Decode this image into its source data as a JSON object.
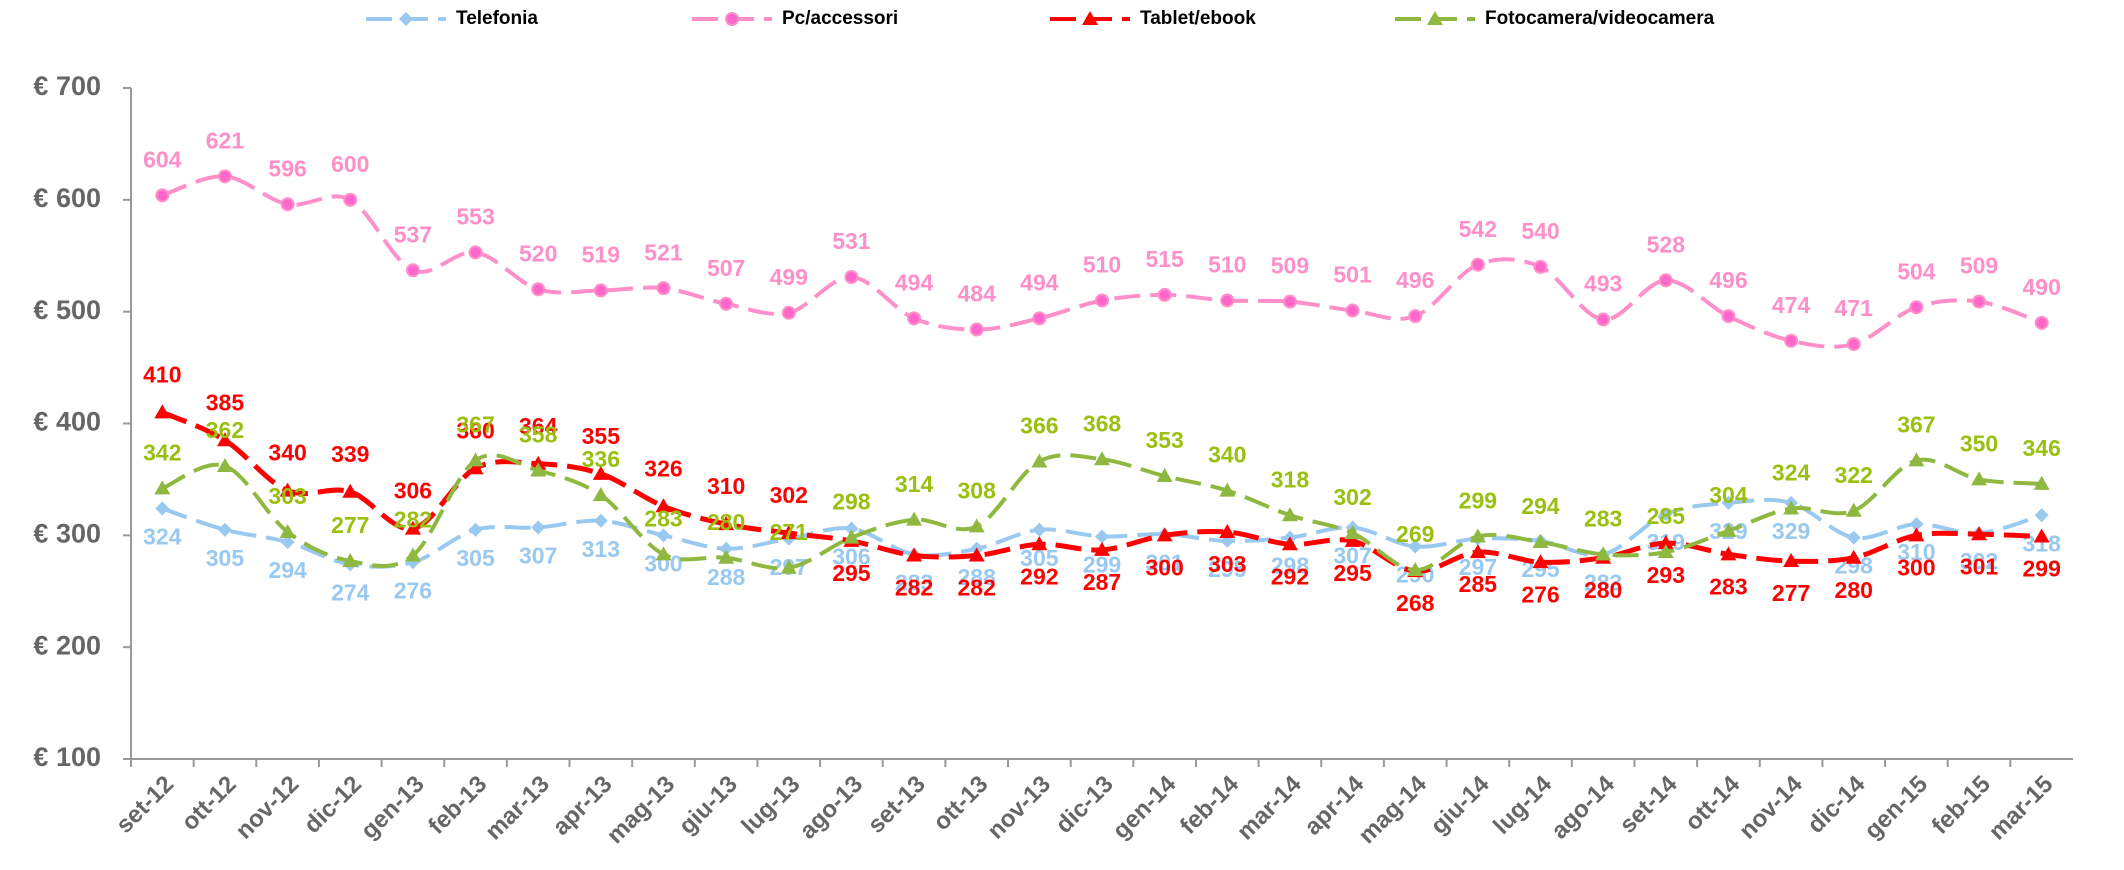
{
  "chart_data": {
    "type": "line",
    "categories": [
      "set-12",
      "ott-12",
      "nov-12",
      "dic-12",
      "gen-13",
      "feb-13",
      "mar-13",
      "apr-13",
      "mag-13",
      "giu-13",
      "lug-13",
      "ago-13",
      "set-13",
      "ott-13",
      "nov-13",
      "dic-13",
      "gen-14",
      "feb-14",
      "mar-14",
      "apr-14",
      "mag-14",
      "giu-14",
      "lug-14",
      "ago-14",
      "set-14",
      "ott-14",
      "nov-14",
      "dic-14",
      "gen-15",
      "feb-15",
      "mar-15"
    ],
    "series": [
      {
        "name": "Telefonia",
        "color": "#99c8f0",
        "values": [
          324,
          305,
          294,
          274,
          276,
          305,
          307,
          313,
          300,
          288,
          297,
          306,
          283,
          288,
          305,
          299,
          301,
          295,
          298,
          307,
          290,
          297,
          295,
          283,
          319,
          329,
          329,
          298,
          310,
          302,
          318
        ]
      },
      {
        "name": "Pc/accessori",
        "color": "#ff8fc8",
        "values": [
          604,
          621,
          596,
          600,
          537,
          553,
          520,
          519,
          521,
          507,
          499,
          531,
          494,
          484,
          494,
          510,
          515,
          510,
          509,
          501,
          496,
          542,
          540,
          493,
          528,
          496,
          474,
          471,
          504,
          509,
          490
        ]
      },
      {
        "name": "Tablet/ebook",
        "color": "#ff0000",
        "values": [
          410,
          385,
          340,
          339,
          306,
          360,
          364,
          355,
          326,
          310,
          302,
          295,
          282,
          282,
          292,
          287,
          300,
          303,
          292,
          295,
          268,
          285,
          276,
          280,
          293,
          283,
          277,
          280,
          300,
          301,
          299
        ]
      },
      {
        "name": "Fotocamera/videocamera",
        "color": "#8fb840",
        "values": [
          342,
          362,
          303,
          277,
          282,
          367,
          358,
          336,
          283,
          280,
          271,
          298,
          314,
          308,
          366,
          368,
          353,
          340,
          318,
          302,
          269,
          299,
          294,
          283,
          285,
          304,
          324,
          322,
          367,
          350,
          346
        ]
      }
    ],
    "ylim": [
      100,
      700
    ],
    "yticks": [
      {
        "value": 100,
        "label": "€ 100"
      },
      {
        "value": 200,
        "label": "€ 200"
      },
      {
        "value": 300,
        "label": "€ 300"
      },
      {
        "value": 400,
        "label": "€ 400"
      },
      {
        "value": 500,
        "label": "€ 500"
      },
      {
        "value": 600,
        "label": "€ 600"
      },
      {
        "value": 700,
        "label": "€ 700"
      }
    ],
    "legend": "top",
    "grid": false
  }
}
